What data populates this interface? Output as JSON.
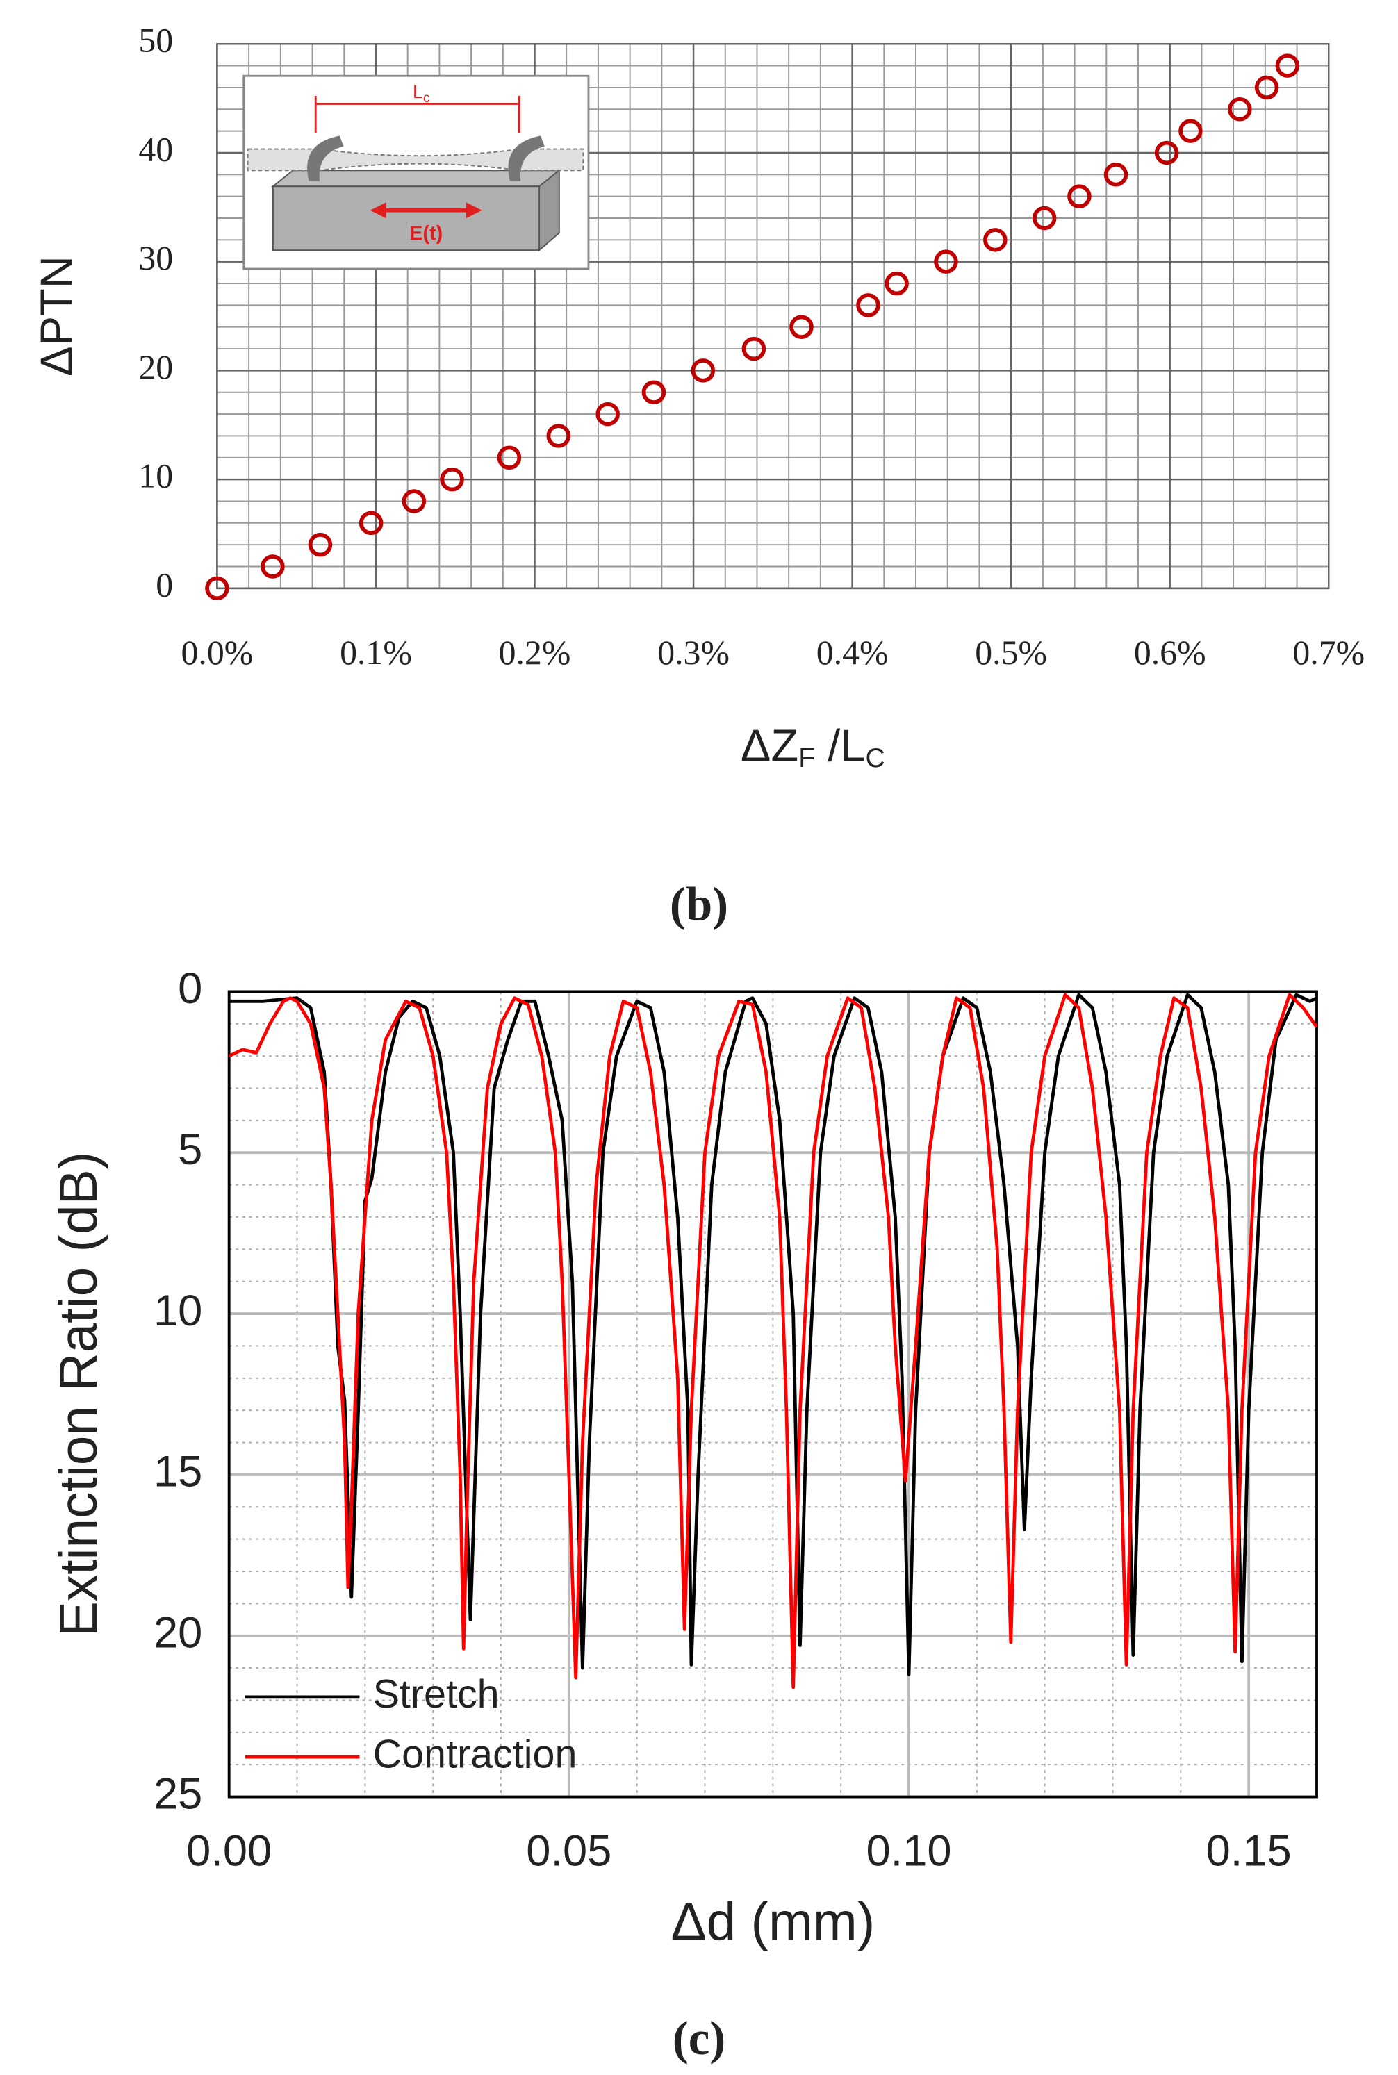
{
  "chart_data": [
    {
      "type": "scatter",
      "caption": "(b)",
      "ylabel": "ΔPTN",
      "xlabel": [
        "ΔZ",
        "F",
        " /L",
        "C"
      ],
      "inset": {
        "length_label": "L",
        "length_sub": "c",
        "field_label": "E(t)"
      },
      "color": "#c00000",
      "grid": true,
      "xlim": [
        0,
        0.7
      ],
      "ylim": [
        0,
        50
      ],
      "xticks": [
        {
          "value": 0,
          "label": "0.0%"
        },
        {
          "value": 0.1,
          "label": "0.1%"
        },
        {
          "value": 0.2,
          "label": "0.2%"
        },
        {
          "value": 0.3,
          "label": "0.3%"
        },
        {
          "value": 0.4,
          "label": "0.4%"
        },
        {
          "value": 0.5,
          "label": "0.5%"
        },
        {
          "value": 0.6,
          "label": "0.6%"
        },
        {
          "value": 0.7,
          "label": "0.7%"
        }
      ],
      "yticks": [
        0,
        10,
        20,
        30,
        40,
        50
      ],
      "x": [
        0,
        0.035,
        0.065,
        0.097,
        0.124,
        0.148,
        0.184,
        0.215,
        0.246,
        0.275,
        0.306,
        0.338,
        0.368,
        0.41,
        0.428,
        0.459,
        0.49,
        0.521,
        0.543,
        0.566,
        0.598,
        0.613,
        0.644,
        0.661,
        0.674
      ],
      "values": [
        0,
        2,
        4,
        6,
        8,
        10,
        12,
        14,
        16,
        18,
        20,
        22,
        24,
        26,
        28,
        30,
        32,
        34,
        36,
        38,
        40,
        42,
        44,
        46,
        48
      ]
    },
    {
      "type": "line",
      "caption": "(c)",
      "ylabel": "Extinction Ratio (dB)",
      "xlabel": "Δd (mm)",
      "grid": true,
      "legend": "lower left",
      "xlim": [
        0,
        0.16
      ],
      "ylim": [
        25,
        0
      ],
      "xticks": [
        {
          "value": 0,
          "label": "0.00"
        },
        0.05,
        {
          "value": 0.1,
          "label": "0.10"
        },
        0.15
      ],
      "yticks": [
        0,
        5,
        10,
        15,
        20,
        25
      ],
      "series": [
        {
          "name": "Stretch",
          "color": "#000000",
          "x": [
            0,
            0.005,
            0.01,
            0.012,
            0.014,
            0.015,
            0.016,
            0.017,
            0.018,
            0.019,
            0.02,
            0.021,
            0.023,
            0.025,
            0.027,
            0.029,
            0.031,
            0.033,
            0.034,
            0.0355,
            0.037,
            0.039,
            0.041,
            0.043,
            0.045,
            0.047,
            0.049,
            0.0505,
            0.052,
            0.053,
            0.055,
            0.057,
            0.06,
            0.062,
            0.064,
            0.066,
            0.0675,
            0.068,
            0.069,
            0.071,
            0.073,
            0.076,
            0.077,
            0.079,
            0.081,
            0.083,
            0.084,
            0.085,
            0.087,
            0.089,
            0.092,
            0.094,
            0.096,
            0.098,
            0.099,
            0.1,
            0.101,
            0.103,
            0.105,
            0.108,
            0.11,
            0.112,
            0.114,
            0.116,
            0.117,
            0.118,
            0.12,
            0.122,
            0.125,
            0.127,
            0.129,
            0.131,
            0.132,
            0.133,
            0.134,
            0.136,
            0.138,
            0.141,
            0.143,
            0.145,
            0.147,
            0.148,
            0.149,
            0.15,
            0.152,
            0.154,
            0.157,
            0.159,
            0.16
          ],
          "values": [
            0.3,
            0.3,
            0.2,
            0.5,
            2.5,
            6,
            11,
            12.7,
            18.8,
            13,
            6.5,
            5.8,
            2.5,
            0.8,
            0.3,
            0.5,
            2,
            5,
            10,
            19.5,
            10,
            3,
            1.5,
            0.3,
            0.3,
            2,
            4,
            9,
            21,
            14,
            5,
            2,
            0.3,
            0.5,
            2.5,
            7,
            13,
            20.9,
            15,
            6,
            2.5,
            0.3,
            0.2,
            1,
            4,
            10,
            20.3,
            13,
            5,
            2,
            0.2,
            0.5,
            2.5,
            7,
            12,
            21.2,
            13,
            5,
            2,
            0.2,
            0.5,
            2.5,
            6,
            11,
            16.7,
            12,
            5,
            2,
            0.1,
            0.5,
            2.5,
            6,
            11,
            20.6,
            13,
            5,
            2,
            0.1,
            0.5,
            2.5,
            6,
            11,
            20.8,
            13,
            5,
            1.5,
            0.1,
            0.3,
            0.2
          ]
        },
        {
          "name": "Contraction",
          "color": "#ff0000",
          "x": [
            0,
            0.002,
            0.004,
            0.006,
            0.008,
            0.009,
            0.01,
            0.012,
            0.014,
            0.015,
            0.016,
            0.017,
            0.0175,
            0.018,
            0.019,
            0.021,
            0.023,
            0.026,
            0.028,
            0.03,
            0.032,
            0.033,
            0.034,
            0.0345,
            0.035,
            0.036,
            0.038,
            0.04,
            0.042,
            0.044,
            0.046,
            0.048,
            0.049,
            0.05,
            0.051,
            0.052,
            0.054,
            0.056,
            0.058,
            0.06,
            0.062,
            0.064,
            0.066,
            0.067,
            0.068,
            0.07,
            0.072,
            0.075,
            0.077,
            0.079,
            0.081,
            0.082,
            0.083,
            0.084,
            0.086,
            0.088,
            0.091,
            0.093,
            0.095,
            0.097,
            0.098,
            0.0995,
            0.101,
            0.103,
            0.105,
            0.107,
            0.109,
            0.111,
            0.113,
            0.114,
            0.115,
            0.116,
            0.118,
            0.12,
            0.123,
            0.125,
            0.127,
            0.129,
            0.131,
            0.132,
            0.133,
            0.135,
            0.137,
            0.139,
            0.141,
            0.143,
            0.145,
            0.147,
            0.148,
            0.149,
            0.151,
            0.153,
            0.156,
            0.158,
            0.16
          ],
          "values": [
            2,
            1.8,
            1.9,
            1,
            0.3,
            0.2,
            0.3,
            1,
            3,
            6,
            10,
            14,
            18.5,
            16,
            10,
            4,
            1.5,
            0.3,
            0.5,
            2,
            5,
            9,
            15,
            20.4,
            16,
            9,
            3,
            1,
            0.2,
            0.4,
            2,
            5,
            9,
            15,
            21.3,
            14,
            6,
            2,
            0.3,
            0.5,
            2.5,
            6,
            12,
            19.8,
            13,
            5,
            2,
            0.3,
            0.4,
            2.5,
            7,
            13,
            21.6,
            13,
            5,
            2,
            0.2,
            0.5,
            3,
            7,
            11,
            15.2,
            11,
            5,
            2,
            0.2,
            0.5,
            3,
            8,
            13,
            20.2,
            13,
            5,
            2,
            0.1,
            0.5,
            3,
            7,
            13,
            20.9,
            13,
            5,
            2,
            0.2,
            0.5,
            3,
            7,
            13,
            20.5,
            13,
            5,
            2,
            0.1,
            0.5,
            1.1
          ]
        }
      ]
    }
  ]
}
